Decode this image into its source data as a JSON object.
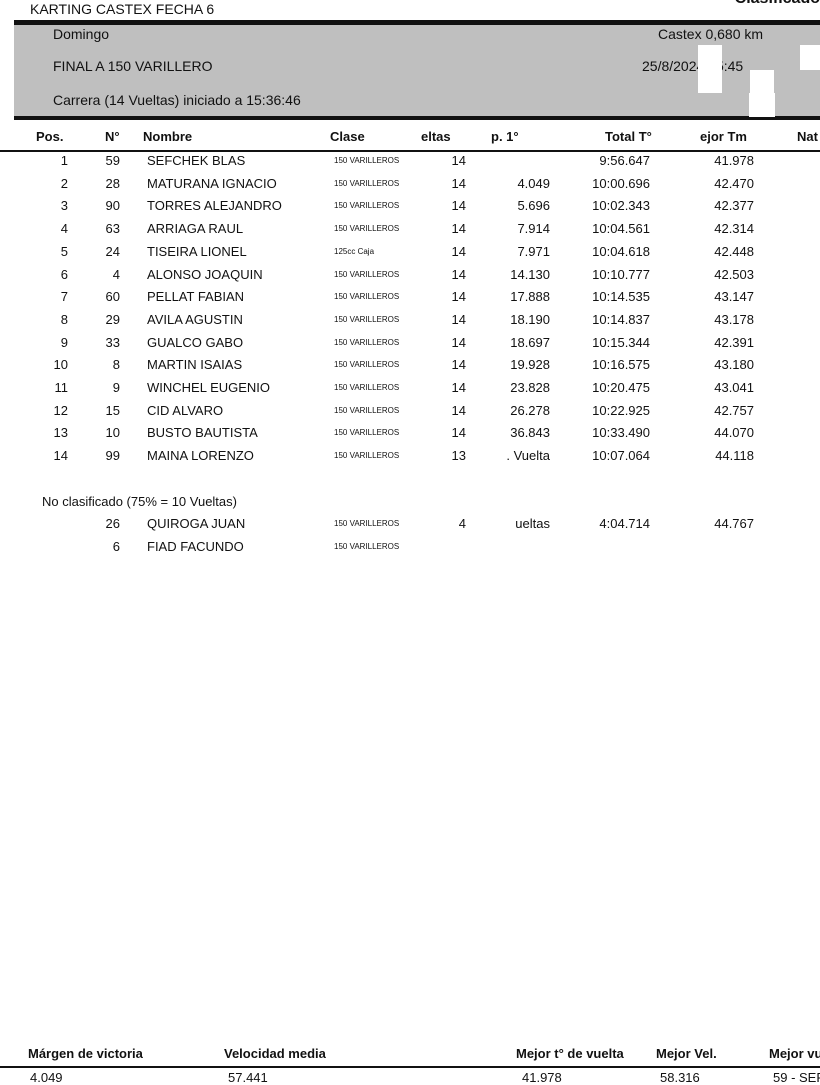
{
  "header": {
    "event": "KARTING CASTEX FECHA 6",
    "report": "Clasificado",
    "day": "Domingo",
    "race": "FINAL A 150 VARILLERO",
    "info": "Carrera (14 Vueltas) iniciado a 15:36:46",
    "track": "Castex 0,680 km",
    "datetime": "25/8/2024 15:45"
  },
  "columns": [
    "Pos.",
    "N°",
    "Nombre",
    "Clase",
    "eltas",
    "p. 1°",
    "Total T°",
    "ejor Tm",
    "Nat"
  ],
  "rows": [
    [
      "1",
      "59",
      "SEFCHEK BLAS",
      "150 VARILLEROS",
      "14",
      "",
      "9:56.647",
      "41.978"
    ],
    [
      "2",
      "28",
      "MATURANA IGNACIO",
      "150 VARILLEROS",
      "14",
      "4.049",
      "10:00.696",
      "42.470"
    ],
    [
      "3",
      "90",
      "TORRES ALEJANDRO",
      "150 VARILLEROS",
      "14",
      "5.696",
      "10:02.343",
      "42.377"
    ],
    [
      "4",
      "63",
      "ARRIAGA RAUL",
      "150 VARILLEROS",
      "14",
      "7.914",
      "10:04.561",
      "42.314"
    ],
    [
      "5",
      "24",
      "TISEIRA LIONEL",
      "125cc Caja",
      "14",
      "7.971",
      "10:04.618",
      "42.448"
    ],
    [
      "6",
      "4",
      "ALONSO JOAQUIN",
      "150 VARILLEROS",
      "14",
      "14.130",
      "10:10.777",
      "42.503"
    ],
    [
      "7",
      "60",
      "PELLAT FABIAN",
      "150 VARILLEROS",
      "14",
      "17.888",
      "10:14.535",
      "43.147"
    ],
    [
      "8",
      "29",
      "AVILA AGUSTIN",
      "150 VARILLEROS",
      "14",
      "18.190",
      "10:14.837",
      "43.178"
    ],
    [
      "9",
      "33",
      "GUALCO GABO",
      "150 VARILLEROS",
      "14",
      "18.697",
      "10:15.344",
      "42.391"
    ],
    [
      "10",
      "8",
      "MARTIN ISAIAS",
      "150 VARILLEROS",
      "14",
      "19.928",
      "10:16.575",
      "43.180"
    ],
    [
      "11",
      "9",
      "WINCHEL EUGENIO",
      "150 VARILLEROS",
      "14",
      "23.828",
      "10:20.475",
      "43.041"
    ],
    [
      "12",
      "15",
      "CID ALVARO",
      "150 VARILLEROS",
      "14",
      "26.278",
      "10:22.925",
      "42.757"
    ],
    [
      "13",
      "10",
      "BUSTO BAUTISTA",
      "150 VARILLEROS",
      "14",
      "36.843",
      "10:33.490",
      "44.070"
    ],
    [
      "14",
      "99",
      "MAINA LORENZO",
      "150 VARILLEROS",
      "13",
      ". Vuelta",
      "10:07.064",
      "44.118"
    ]
  ],
  "not_classified_label": "No clasificado (75% = 10 Vueltas)",
  "not_classified": [
    [
      "",
      "26",
      "QUIROGA JUAN",
      "150 VARILLEROS",
      "4",
      "ueltas",
      "4:04.714",
      "44.767"
    ],
    [
      "",
      "6",
      "FIAD FACUNDO",
      "150 VARILLEROS",
      "",
      "",
      "",
      ""
    ]
  ],
  "footer": {
    "labels": [
      "Márgen de victoria",
      "Velocidad media",
      "Mejor t° de vuelta",
      "Mejor Vel.",
      "Mejor vu"
    ],
    "values": [
      "4.049",
      "57.441",
      "41.978",
      "58.316",
      "59 - SEF"
    ]
  }
}
